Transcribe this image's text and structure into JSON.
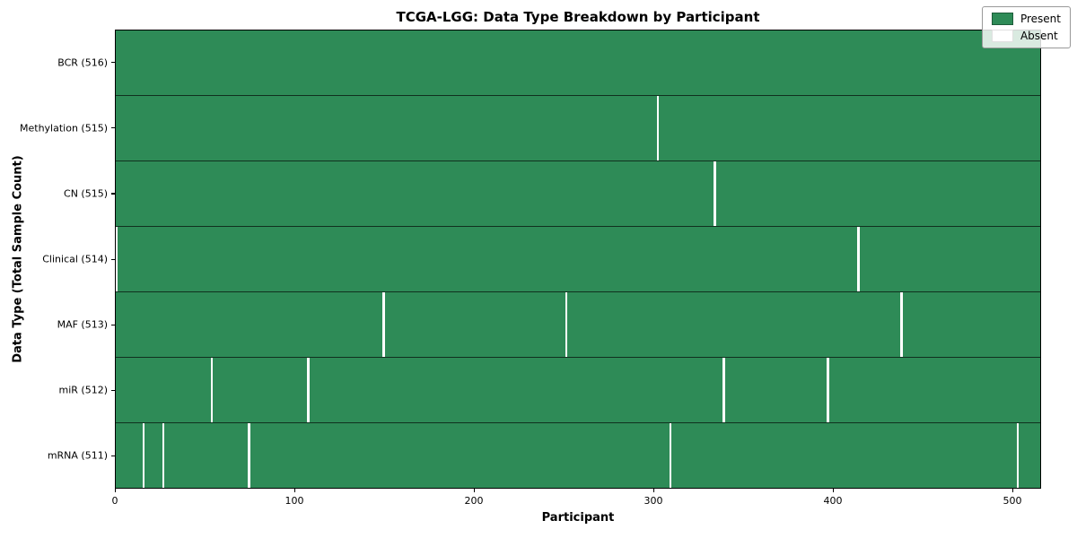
{
  "chart_data": {
    "type": "heatmap",
    "title": "TCGA-LGG: Data Type Breakdown by Participant",
    "xlabel": "Participant",
    "ylabel": "Data Type (Total Sample Count)",
    "n_participants": 516,
    "x_ticks": [
      0,
      100,
      200,
      300,
      400,
      500
    ],
    "xlim": [
      0,
      516
    ],
    "grid": false,
    "legend_position": "upper right",
    "colors": {
      "present": "#2e8b57",
      "absent": "#ffffff",
      "cell_edge": "#17533e"
    },
    "legend": [
      {
        "label": "Present",
        "color": "#2e8b57"
      },
      {
        "label": "Absent",
        "color": "#ffffff"
      }
    ],
    "rows": [
      {
        "label": "BCR (516)",
        "data_type": "BCR",
        "total_sample_count": 516,
        "absent_participants": []
      },
      {
        "label": "Methylation (515)",
        "data_type": "Methylation",
        "total_sample_count": 515,
        "absent_participants": [
          302
        ]
      },
      {
        "label": "CN (515)",
        "data_type": "CN",
        "total_sample_count": 515,
        "absent_participants": [
          334
        ]
      },
      {
        "label": "Clinical (514)",
        "data_type": "Clinical",
        "total_sample_count": 514,
        "absent_participants": [
          0,
          414
        ]
      },
      {
        "label": "MAF (513)",
        "data_type": "MAF",
        "total_sample_count": 513,
        "absent_participants": [
          149,
          251,
          438
        ]
      },
      {
        "label": "miR (512)",
        "data_type": "miR",
        "total_sample_count": 512,
        "absent_participants": [
          53,
          107,
          339,
          397
        ]
      },
      {
        "label": "mRNA (511)",
        "data_type": "mRNA",
        "total_sample_count": 511,
        "absent_participants": [
          15,
          26,
          74,
          309,
          503
        ]
      }
    ]
  }
}
